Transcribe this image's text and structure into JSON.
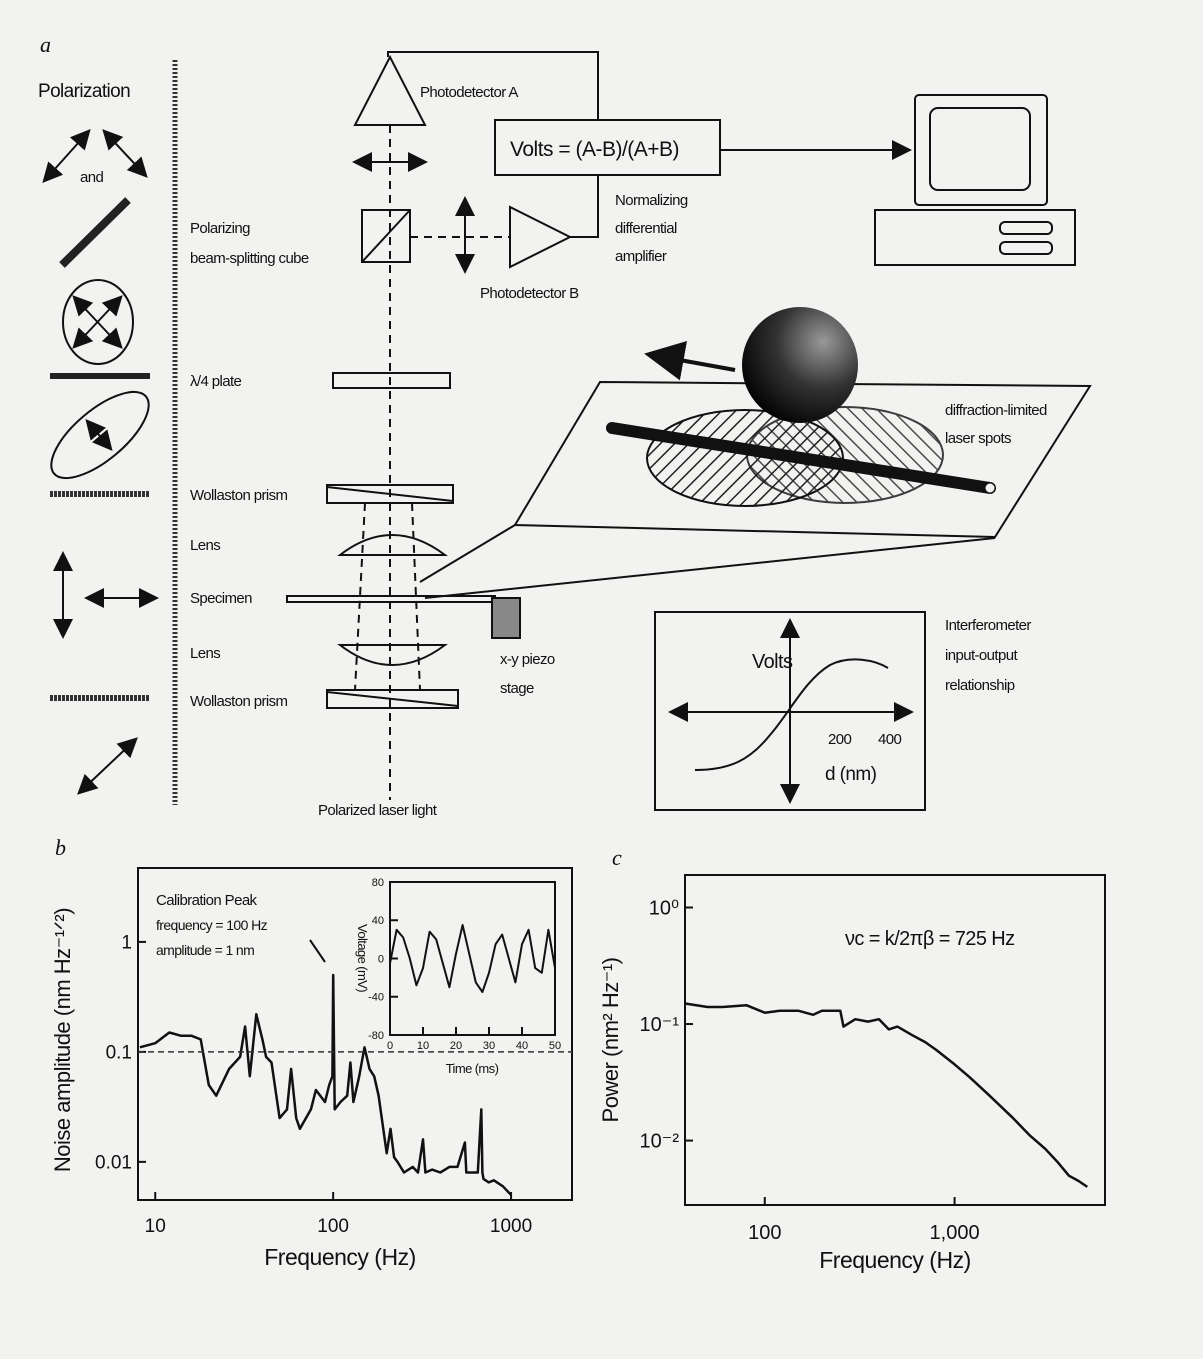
{
  "panel_a": {
    "label": "a",
    "polarization_title": "Polarization",
    "and_label": "and",
    "photodetector_a": "Photodetector A",
    "photodetector_b": "Photodetector B",
    "formula": "Volts = (A-B)/(A+B)",
    "amplifier": [
      "Normalizing",
      "differential",
      "amplifier"
    ],
    "cube": [
      "Polarizing",
      "beam-splitting cube"
    ],
    "quarter_plate": "λ/4 plate",
    "wollaston_top": "Wollaston prism",
    "lens_top": "Lens",
    "specimen": "Specimen",
    "lens_bottom": "Lens",
    "wollaston_bottom": "Wollaston prism",
    "piezo": [
      "x-y piezo",
      "stage"
    ],
    "laser": "Polarized laser light",
    "spots": [
      "diffraction-limited",
      "laser spots"
    ],
    "interferometer": [
      "Interferometer",
      "input-output",
      "relationship"
    ],
    "io_graph": {
      "ylabel": "Volts",
      "ticks": [
        "200",
        "400"
      ],
      "xlabel": "d (nm)"
    }
  },
  "chart_data": [
    {
      "panel": "b",
      "type": "line",
      "xlabel": "Frequency (Hz)",
      "ylabel": "Noise amplitude (nm Hz⁻¹ᐟ²)",
      "xscale": "log",
      "yscale": "log",
      "xlim": [
        8,
        2200
      ],
      "ylim": [
        0.0045,
        4.7
      ],
      "xticks": [
        "10",
        "100",
        "1000"
      ],
      "xtick_values": [
        10,
        100,
        1000
      ],
      "yticks": [
        "0.01",
        "0.1",
        "1"
      ],
      "ytick_values": [
        0.01,
        0.1,
        1
      ],
      "reference_line": 0.1,
      "annotation": [
        "Calibration Peak",
        "frequency = 100 Hz",
        "amplitude = 1 nm"
      ],
      "series": [
        {
          "x": [
            8.2,
            10,
            12,
            14,
            16,
            18,
            20,
            22,
            26,
            30,
            32,
            34,
            37,
            40,
            42,
            45,
            50,
            55,
            58,
            62,
            65,
            75,
            80,
            90,
            95,
            99,
            100,
            102,
            110,
            120,
            125,
            130,
            140,
            150,
            160,
            170,
            180,
            200,
            210,
            220,
            230,
            250,
            280,
            300,
            320,
            330,
            360,
            400,
            450,
            500,
            550,
            560,
            600,
            650,
            680,
            690,
            700,
            750,
            800,
            900,
            1000
          ],
          "y": [
            0.11,
            0.12,
            0.15,
            0.14,
            0.14,
            0.13,
            0.05,
            0.04,
            0.07,
            0.09,
            0.17,
            0.06,
            0.22,
            0.13,
            0.09,
            0.08,
            0.025,
            0.03,
            0.07,
            0.025,
            0.02,
            0.03,
            0.045,
            0.035,
            0.05,
            0.06,
            0.5,
            0.03,
            0.035,
            0.04,
            0.08,
            0.035,
            0.06,
            0.11,
            0.07,
            0.06,
            0.04,
            0.012,
            0.02,
            0.011,
            0.01,
            0.008,
            0.009,
            0.008,
            0.016,
            0.008,
            0.0085,
            0.008,
            0.009,
            0.009,
            0.015,
            0.008,
            0.008,
            0.008,
            0.03,
            0.008,
            0.007,
            0.0065,
            0.0068,
            0.006,
            0.005
          ]
        }
      ],
      "inset": {
        "type": "line",
        "xlabel": "Time (ms)",
        "ylabel": "Voltage (mV)",
        "xlim": [
          0,
          50
        ],
        "ylim": [
          -80,
          80
        ],
        "xticks": [
          "0",
          "10",
          "20",
          "30",
          "40",
          "50"
        ],
        "xtick_values": [
          0,
          10,
          20,
          30,
          40,
          50
        ],
        "yticks": [
          "80",
          "40",
          "0",
          "-40",
          "-80"
        ],
        "ytick_values": [
          80,
          40,
          0,
          -40,
          -80
        ],
        "x": [
          0,
          2,
          4,
          6,
          8,
          10,
          12,
          14,
          16,
          18,
          20,
          22,
          24,
          26,
          28,
          30,
          32,
          34,
          36,
          38,
          40,
          42,
          44,
          46,
          48,
          50
        ],
        "y": [
          -5,
          30,
          22,
          0,
          -28,
          -10,
          28,
          20,
          -5,
          -30,
          5,
          35,
          5,
          -25,
          -35,
          -15,
          15,
          25,
          0,
          -25,
          15,
          30,
          -10,
          -15,
          30,
          -10
        ]
      }
    },
    {
      "panel": "c",
      "type": "line",
      "xlabel": "Frequency (Hz)",
      "ylabel": "Power (nm² Hz⁻¹)",
      "xscale": "log",
      "yscale": "log",
      "xlim": [
        38,
        6200
      ],
      "ylim": [
        0.0028,
        1.9
      ],
      "xticks": [
        "100",
        "1,000"
      ],
      "xtick_values": [
        100,
        1000
      ],
      "yticks": [
        "10⁰",
        "10⁻¹",
        "10⁻²"
      ],
      "ytick_values": [
        1,
        0.1,
        0.01
      ],
      "annotation": "νc = k/2πβ = 725 Hz",
      "series": [
        {
          "x": [
            38,
            50,
            60,
            80,
            100,
            120,
            150,
            180,
            200,
            250,
            260,
            300,
            350,
            400,
            450,
            500,
            600,
            700,
            800,
            1000,
            1200,
            1500,
            2000,
            2500,
            3000,
            3500,
            4000,
            4500,
            5000
          ],
          "y": [
            0.15,
            0.14,
            0.14,
            0.145,
            0.125,
            0.13,
            0.13,
            0.12,
            0.13,
            0.13,
            0.095,
            0.11,
            0.105,
            0.11,
            0.09,
            0.095,
            0.08,
            0.07,
            0.06,
            0.045,
            0.035,
            0.025,
            0.016,
            0.011,
            0.0085,
            0.0065,
            0.005,
            0.0045,
            0.004
          ]
        }
      ]
    }
  ]
}
